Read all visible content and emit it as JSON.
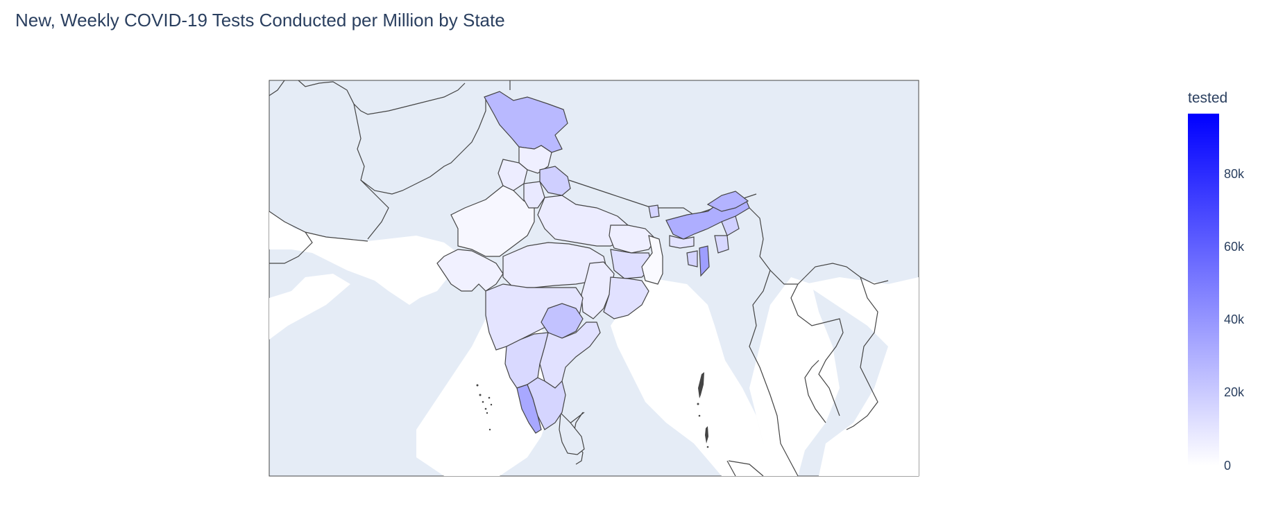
{
  "title": "New, Weekly COVID-19 Tests Conducted per Million by State",
  "colorbar": {
    "title": "tested",
    "ticks": [
      "0",
      "20k",
      "40k",
      "60k",
      "80k"
    ],
    "min_color": "#ffffff",
    "max_color": "#0000ff",
    "range": [
      0,
      97000
    ]
  },
  "colors": {
    "land": "#e5ecf6",
    "border": "#444444",
    "title_text": "#2a3f5f"
  }
}
